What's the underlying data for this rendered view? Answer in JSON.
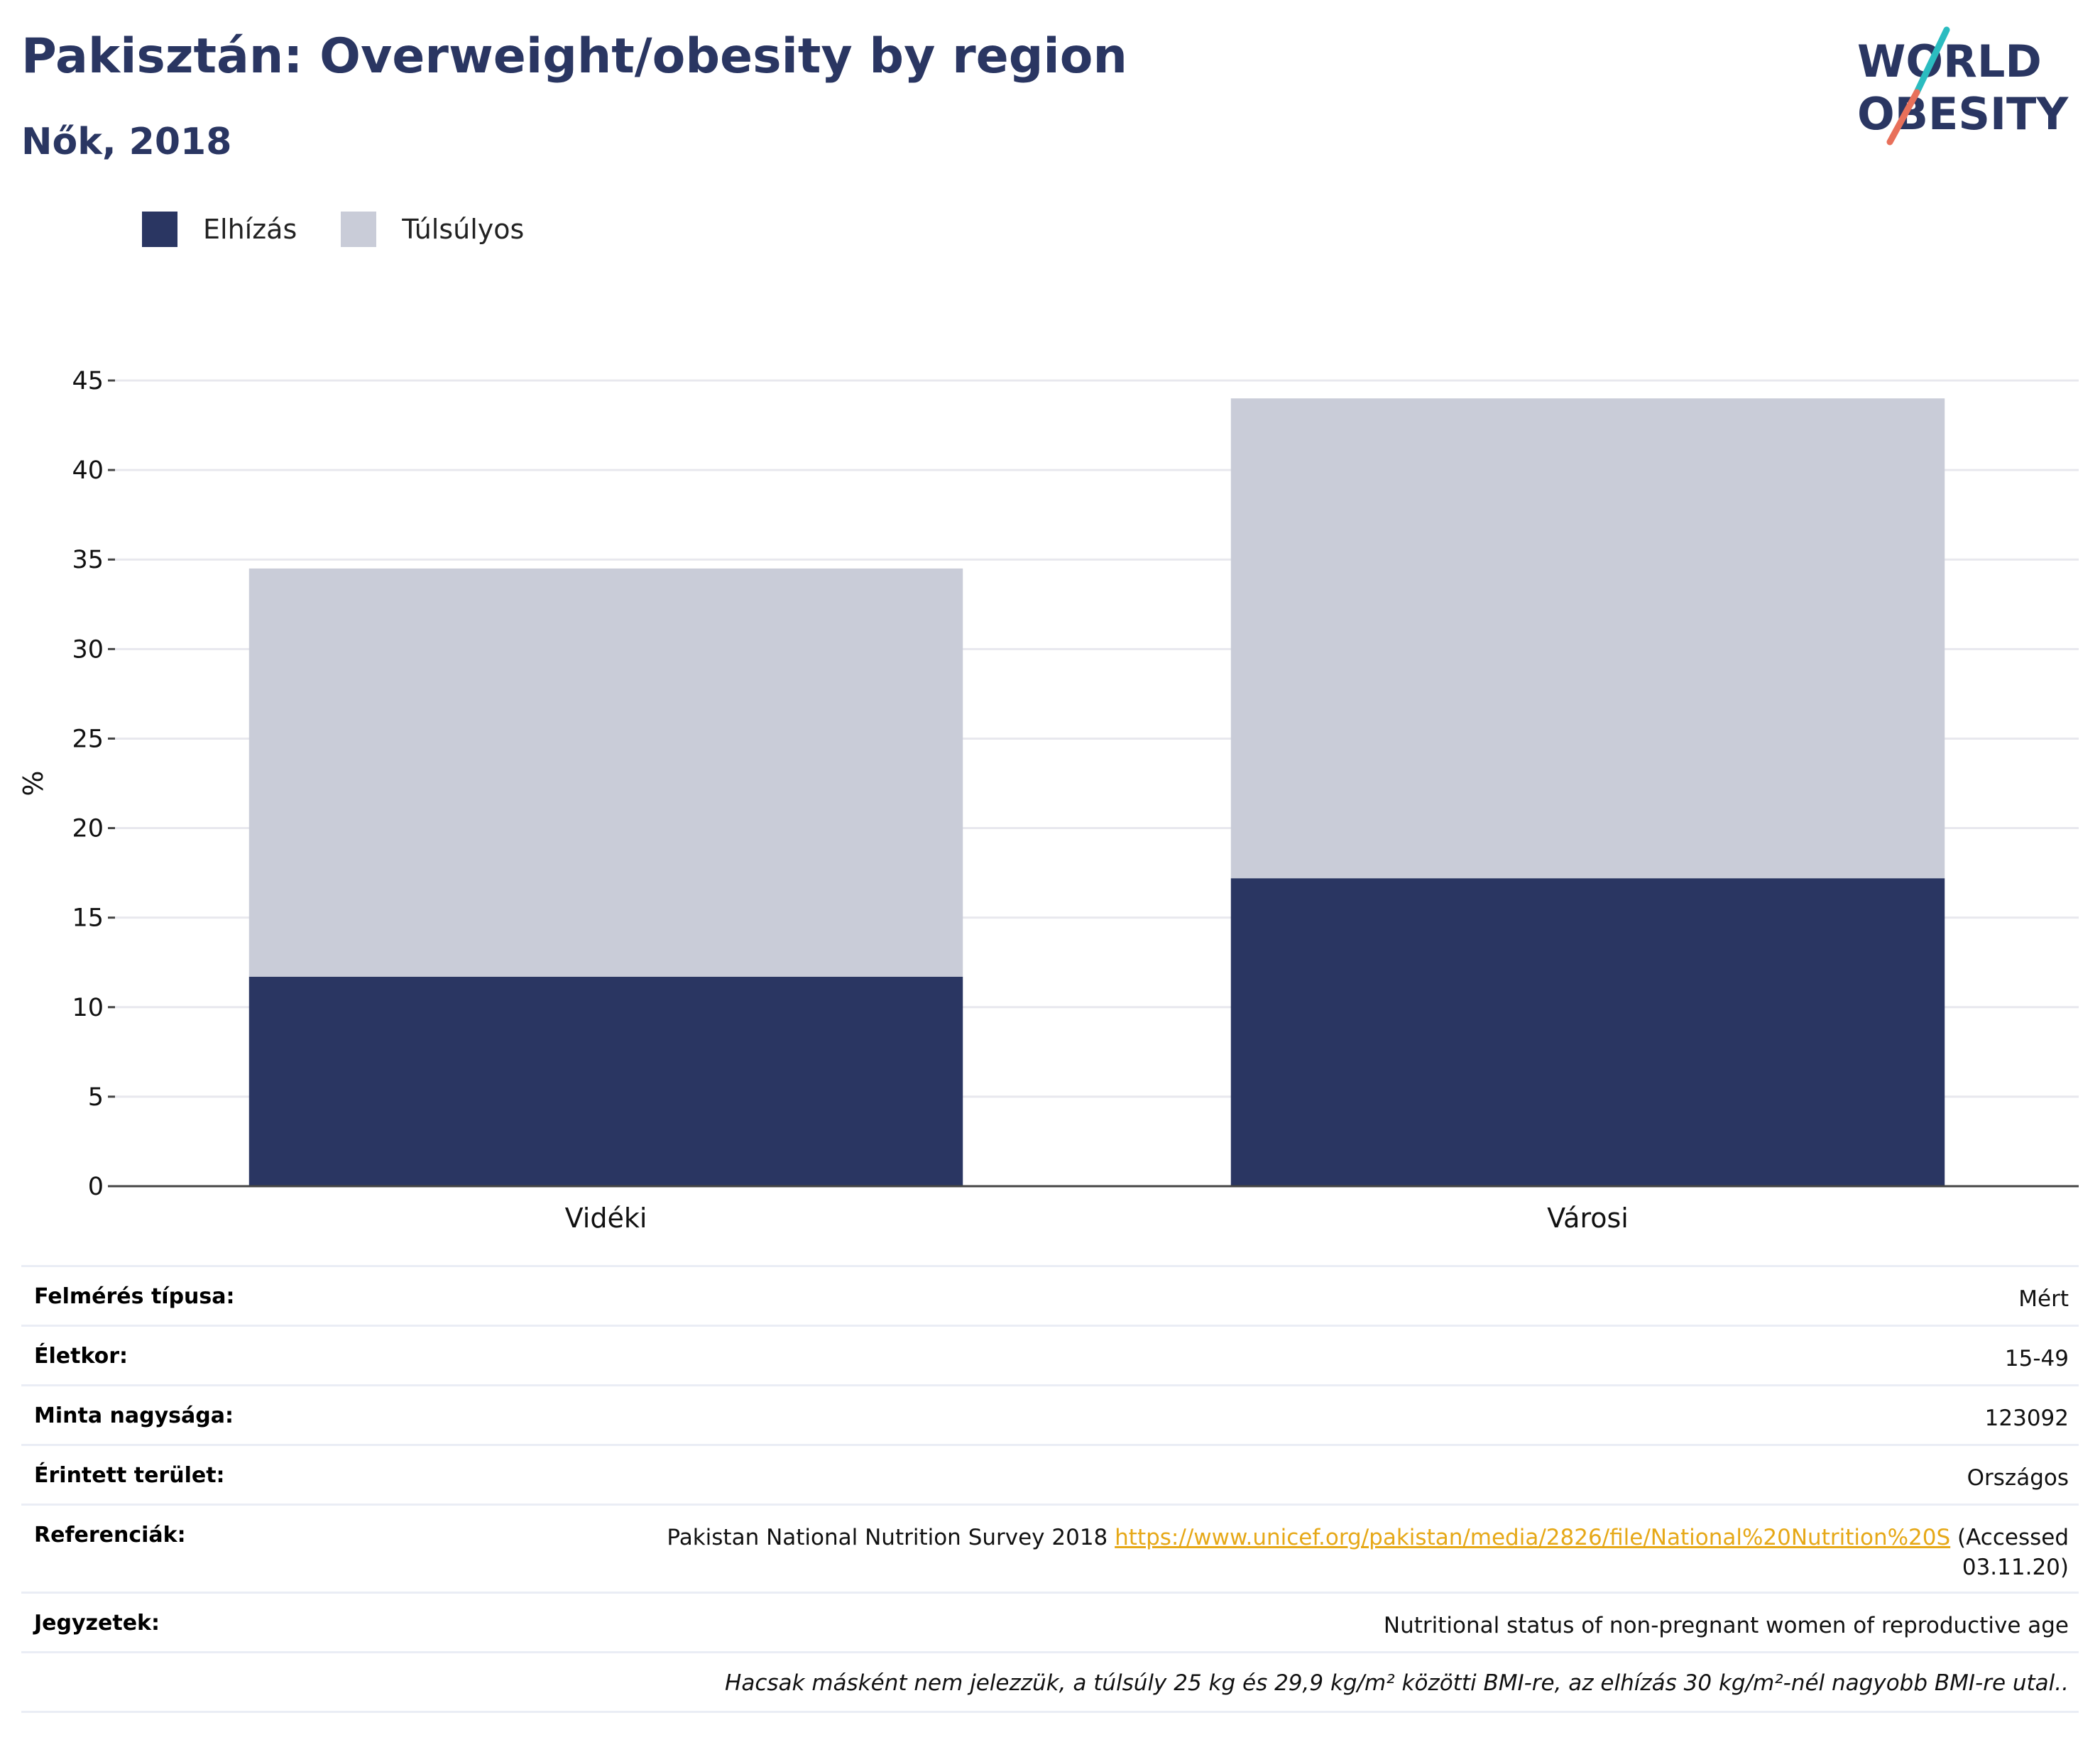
{
  "header": {
    "title": "Pakisztán: Overweight/obesity by region",
    "subtitle": "Nők, 2018"
  },
  "logo": {
    "line1": "WORLD",
    "line2": "OBESITY"
  },
  "legend": [
    {
      "label": "Elhízás",
      "color": "#2a3662"
    },
    {
      "label": "Túlsúlyos",
      "color": "#c9ccd8"
    }
  ],
  "chart_data": {
    "type": "bar",
    "stacked": true,
    "categories": [
      "Vidéki",
      "Városi"
    ],
    "series": [
      {
        "name": "Elhízás",
        "color": "#2a3662",
        "values": [
          11.7,
          17.2
        ]
      },
      {
        "name": "Túlsúlyos",
        "color": "#c9ccd8",
        "values": [
          22.8,
          26.8
        ]
      }
    ],
    "ylabel": "%",
    "ylim": [
      0,
      45
    ],
    "yticks": [
      0,
      5,
      10,
      15,
      20,
      25,
      30,
      35,
      40,
      45
    ],
    "grid": true,
    "legend_position": "top-left"
  },
  "info": {
    "rows": [
      {
        "key": "Felmérés típusa:",
        "value": "Mért"
      },
      {
        "key": "Életkor:",
        "value": "15-49"
      },
      {
        "key": "Minta nagysága:",
        "value": "123092"
      },
      {
        "key": "Érintett terület:",
        "value": "Országos"
      }
    ],
    "references": {
      "key": "Referenciák:",
      "text": "Pakistan National Nutrition Survey 2018",
      "link": "https://www.unicef.org/pakistan/media/2826/file/National%20Nutrition%20S",
      "accessed": "(Accessed 03.11.20)"
    },
    "notes": {
      "key": "Jegyzetek:",
      "value": "Nutritional status of non-pregnant women of reproductive age"
    },
    "footnote": "Hacsak másként nem jelezzük, a túlsúly 25 kg és 29,9 kg/m² közötti BMI-re, az elhízás 30 kg/m²-nél nagyobb BMI-re utal.."
  }
}
